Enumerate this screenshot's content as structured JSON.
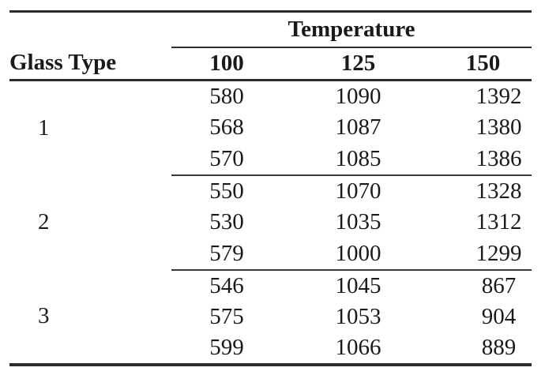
{
  "page": {
    "background": "#ffffff"
  },
  "colors": {
    "text": "#1a1a1a",
    "rule_thick": "#2d2d2d",
    "rule_thin": "#3a3a3a"
  },
  "table": {
    "column_group_header": "Temperature",
    "row_group_header": "Glass Type",
    "temperature_levels": [
      "100",
      "125",
      "150"
    ],
    "groups": [
      {
        "glass_type": "1",
        "rows": [
          [
            "580",
            "1090",
            "1392"
          ],
          [
            "568",
            "1087",
            "1380"
          ],
          [
            "570",
            "1085",
            "1386"
          ]
        ]
      },
      {
        "glass_type": "2",
        "rows": [
          [
            "550",
            "1070",
            "1328"
          ],
          [
            "530",
            "1035",
            "1312"
          ],
          [
            "579",
            "1000",
            "1299"
          ]
        ]
      },
      {
        "glass_type": "3",
        "rows": [
          [
            "546",
            "1045",
            "867"
          ],
          [
            "575",
            "1053",
            "904"
          ],
          [
            "599",
            "1066",
            "889"
          ]
        ]
      }
    ]
  }
}
